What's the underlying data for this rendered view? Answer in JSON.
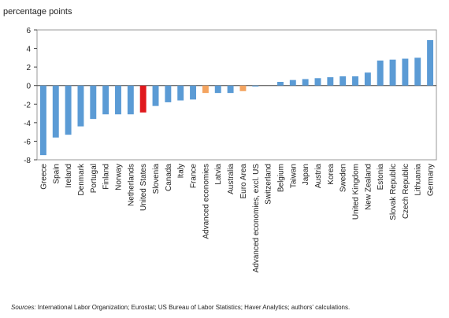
{
  "chart_data": {
    "type": "bar",
    "ylabel": "percentage points",
    "ylim": [
      -8,
      6
    ],
    "yticks": [
      -8,
      -6,
      -4,
      -2,
      0,
      2,
      4,
      6
    ],
    "grid": false,
    "legend": "none",
    "categories": [
      "Greece",
      "Spain",
      "Ireland",
      "Denmark",
      "Portugal",
      "Finland",
      "Norway",
      "Netherlands",
      "United States",
      "Slovenia",
      "Canada",
      "Italy",
      "France",
      "Advanced economies",
      "Latvia",
      "Australia",
      "Euro Area",
      "Advanced economies, excl. US",
      "Switzerland",
      "Belgium",
      "Taiwan",
      "Japan",
      "Austria",
      "Korea",
      "Sweden",
      "United Kingdom",
      "New Zealand",
      "Estonia",
      "Slovak Republic",
      "Czech Republic",
      "Lithuania",
      "Germany"
    ],
    "values": [
      -7.5,
      -5.6,
      -5.3,
      -4.4,
      -3.6,
      -3.1,
      -3.1,
      -3.1,
      -2.9,
      -2.2,
      -1.8,
      -1.6,
      -1.5,
      -0.8,
      -0.8,
      -0.8,
      -0.6,
      -0.1,
      0.0,
      0.4,
      0.6,
      0.7,
      0.8,
      0.9,
      1.0,
      1.0,
      1.4,
      2.7,
      2.8,
      2.9,
      3.0,
      4.9
    ],
    "highlight": {
      "United States": "red",
      "Advanced economies": "orange",
      "Euro Area": "orange"
    }
  },
  "colors": {
    "bar": "#5b9bd5",
    "red": "#e0191d",
    "orange": "#f4a460",
    "axis": "#444444"
  },
  "footnote": {
    "sources_label": "Sources:",
    "sources_text": " International Labor Organization;  Eurostat; US Bureau of Labor Statistics; Haver Analytics; authors' calculations."
  }
}
